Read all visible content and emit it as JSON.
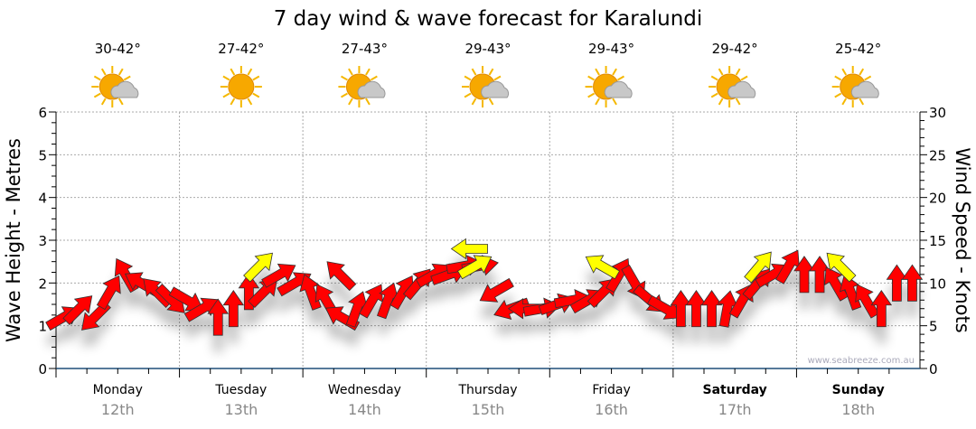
{
  "chart_data": {
    "type": "scatter",
    "title": "7 day wind & wave forecast for Karalundi",
    "ylabel_left": "Wave Height - Metres",
    "ylabel_right": "Wind Speed - Knots",
    "ylim_left": [
      0,
      6
    ],
    "ylim_right": [
      0,
      30
    ],
    "yticks_left": [
      "0",
      "1",
      "2",
      "3",
      "4",
      "5",
      "6"
    ],
    "yticks_right": [
      "0",
      "5",
      "10",
      "15",
      "20",
      "25",
      "30"
    ],
    "grid": true,
    "watermark": "www.seabreeze.com.au",
    "days": [
      {
        "name": "Monday",
        "date": "12th",
        "temp": "30-42°",
        "icon": "sun-cloud-icon",
        "bold": false
      },
      {
        "name": "Tuesday",
        "date": "13th",
        "temp": "27-42°",
        "icon": "sun-icon",
        "bold": false
      },
      {
        "name": "Wednesday",
        "date": "14th",
        "temp": "27-43°",
        "icon": "sun-cloud-icon",
        "bold": false
      },
      {
        "name": "Thursday",
        "date": "15th",
        "temp": "29-43°",
        "icon": "sun-cloud-icon",
        "bold": false
      },
      {
        "name": "Friday",
        "date": "16th",
        "temp": "29-43°",
        "icon": "sun-cloud-icon",
        "bold": false
      },
      {
        "name": "Saturday",
        "date": "17th",
        "temp": "29-42°",
        "icon": "sun-cloud-icon",
        "bold": true
      },
      {
        "name": "Sunday",
        "date": "18th",
        "temp": "25-42°",
        "icon": "sun-cloud-icon",
        "bold": true
      }
    ],
    "points_per_day": 8,
    "wind_speed_knots": [
      6,
      7,
      6,
      9,
      11,
      10,
      9,
      8,
      8,
      7,
      6,
      7,
      9,
      9,
      11,
      10,
      9,
      8,
      6,
      7,
      8,
      8,
      9,
      10,
      11,
      11,
      12,
      12,
      9,
      7,
      7,
      7,
      7.5,
      8,
      8,
      9,
      11,
      10,
      8,
      7,
      7,
      7,
      7,
      7,
      8,
      10,
      11,
      12,
      11,
      11,
      10,
      9,
      8,
      7,
      10,
      10
    ],
    "wind_direction_deg": [
      60,
      45,
      225,
      30,
      330,
      300,
      315,
      135,
      120,
      60,
      0,
      0,
      0,
      45,
      60,
      60,
      340,
      330,
      300,
      20,
      30,
      20,
      30,
      40,
      60,
      70,
      80,
      80,
      240,
      250,
      270,
      80,
      70,
      80,
      60,
      45,
      30,
      150,
      130,
      120,
      0,
      0,
      0,
      10,
      30,
      40,
      60,
      30,
      0,
      0,
      330,
      340,
      330,
      0,
      0,
      0
    ],
    "highlight_arrows": [
      {
        "day_pos": 1.65,
        "speed": 12,
        "dir": 45,
        "color": "#ffff00"
      },
      {
        "day_pos": 2.3,
        "speed": 11,
        "dir": 315,
        "color": "#ff0000"
      },
      {
        "day_pos": 3.35,
        "speed": 14,
        "dir": 270,
        "color": "#ffff00"
      },
      {
        "day_pos": 3.4,
        "speed": 12,
        "dir": 60,
        "color": "#ffff00"
      },
      {
        "day_pos": 4.42,
        "speed": 12,
        "dir": 300,
        "color": "#ffff00"
      },
      {
        "day_pos": 5.7,
        "speed": 12,
        "dir": 40,
        "color": "#ffff00"
      },
      {
        "day_pos": 6.35,
        "speed": 12,
        "dir": 315,
        "color": "#ffff00"
      }
    ],
    "colors": {
      "arrow": "#ff0000",
      "highlight": "#ffff00",
      "axis": "#1f4e79"
    }
  }
}
